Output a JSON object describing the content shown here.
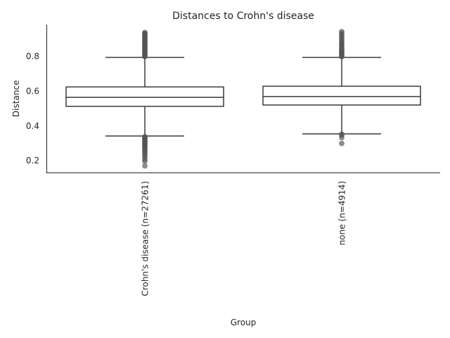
{
  "chart_data": {
    "type": "box",
    "title": "Distances to Crohn's disease",
    "xlabel": "Group",
    "ylabel": "Distance",
    "ylim": [
      0.13,
      0.98
    ],
    "yticks": [
      0.2,
      0.4,
      0.6,
      0.8
    ],
    "yticklabels": [
      "0.2",
      "0.4",
      "0.6",
      "0.8"
    ],
    "grid": false,
    "categories": [
      "Crohn's disease (n=27261)",
      "none (n=4914)"
    ],
    "boxes": [
      {
        "category": "Crohn's disease (n=27261)",
        "whisker_low": 0.34,
        "q1": 0.51,
        "median": 0.562,
        "q3": 0.622,
        "whisker_high": 0.792,
        "outliers": [
          0.336,
          0.332,
          0.328,
          0.324,
          0.32,
          0.316,
          0.312,
          0.308,
          0.304,
          0.3,
          0.295,
          0.29,
          0.285,
          0.28,
          0.272,
          0.265,
          0.258,
          0.25,
          0.24,
          0.23,
          0.22,
          0.205,
          0.195,
          0.168,
          0.796,
          0.8,
          0.805,
          0.81,
          0.815,
          0.82,
          0.825,
          0.83,
          0.835,
          0.84,
          0.845,
          0.85,
          0.855,
          0.86,
          0.865,
          0.87,
          0.875,
          0.88,
          0.885,
          0.89,
          0.895,
          0.9,
          0.905,
          0.91,
          0.915,
          0.92,
          0.925,
          0.93,
          0.935
        ]
      },
      {
        "category": "none (n=4914)",
        "whisker_low": 0.352,
        "q1": 0.518,
        "median": 0.566,
        "q3": 0.626,
        "whisker_high": 0.792,
        "outliers": [
          0.35,
          0.345,
          0.33,
          0.297,
          0.795,
          0.8,
          0.805,
          0.81,
          0.815,
          0.82,
          0.825,
          0.83,
          0.835,
          0.84,
          0.85,
          0.86,
          0.865,
          0.87,
          0.88,
          0.89,
          0.9,
          0.91,
          0.92,
          0.93,
          0.94
        ]
      }
    ]
  },
  "colors": {
    "box_edge": "#3a3a3a",
    "outlier": "#555555",
    "axis": "#262626",
    "text": "#262626"
  }
}
